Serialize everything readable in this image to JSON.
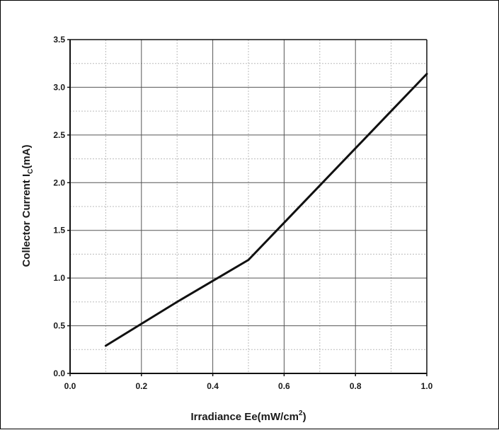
{
  "chart_data": {
    "type": "line",
    "title": "",
    "xlabel": {
      "text": "Irradiance Ee(mW/cm",
      "superscript": "2",
      "suffix": ")"
    },
    "ylabel": {
      "text": "Collector Current I",
      "subscript": "C",
      "suffix": "(mA)"
    },
    "xlim": [
      0.0,
      1.0
    ],
    "ylim": [
      0.0,
      3.5
    ],
    "x_ticks": [
      0.0,
      0.2,
      0.4,
      0.6,
      0.8,
      1.0
    ],
    "x_tick_labels": [
      "0.0",
      "0.2",
      "0.4",
      "0.6",
      "0.8",
      "1.0"
    ],
    "y_ticks": [
      0.0,
      0.5,
      1.0,
      1.5,
      2.0,
      2.5,
      3.0,
      3.5
    ],
    "y_tick_labels": [
      "0.0",
      "0.5",
      "1.0",
      "1.5",
      "2.0",
      "2.5",
      "3.0",
      "3.5"
    ],
    "grid": true,
    "minor_grid": true,
    "legend": "none",
    "series": [
      {
        "color": "#111111",
        "points": [
          {
            "x": 0.1,
            "y": 0.29
          },
          {
            "x": 0.2,
            "y": 0.52
          },
          {
            "x": 0.3,
            "y": 0.75
          },
          {
            "x": 0.4,
            "y": 0.97
          },
          {
            "x": 0.5,
            "y": 1.19
          },
          {
            "x": 0.6,
            "y": 1.58
          },
          {
            "x": 0.7,
            "y": 1.97
          },
          {
            "x": 0.8,
            "y": 2.36
          },
          {
            "x": 0.9,
            "y": 2.75
          },
          {
            "x": 1.0,
            "y": 3.14
          }
        ]
      }
    ],
    "colors": {
      "major_grid": "#555555",
      "minor_grid": "#bbbbbb",
      "axis": "#111111"
    }
  }
}
